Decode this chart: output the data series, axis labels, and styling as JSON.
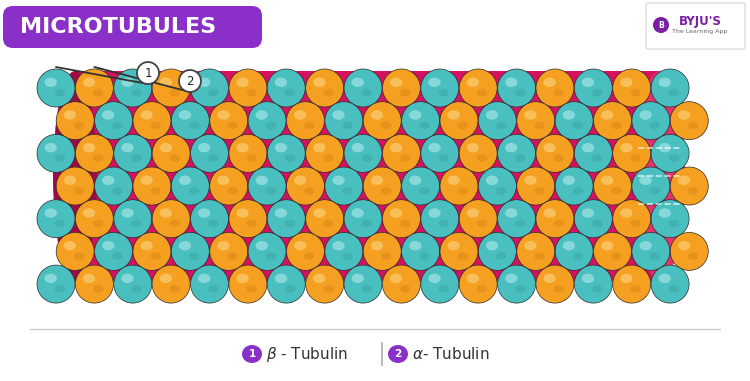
{
  "title": "MICROTUBULES",
  "title_bg": "#8B2FC9",
  "title_color": "#FFFFFF",
  "bg_color": "#FFFFFF",
  "teal_color": "#4ABFBF",
  "teal_highlight": "#A8E6E6",
  "teal_shadow": "#2A8A8A",
  "orange_color": "#F5A020",
  "orange_highlight": "#FAD07A",
  "orange_shadow": "#C07010",
  "tube_color": "#D81060",
  "tube_dark": "#A00848",
  "tube_end_right": "#E8306A",
  "legend_purple": "#8B2FC9",
  "legend_text_color": "#333333",
  "separator_color": "#CCCCCC",
  "label1": "β - Tubulin",
  "label2": "α- Tubulin",
  "byju_purple": "#7B1FA2",
  "byju_border": "#DDDDDD"
}
